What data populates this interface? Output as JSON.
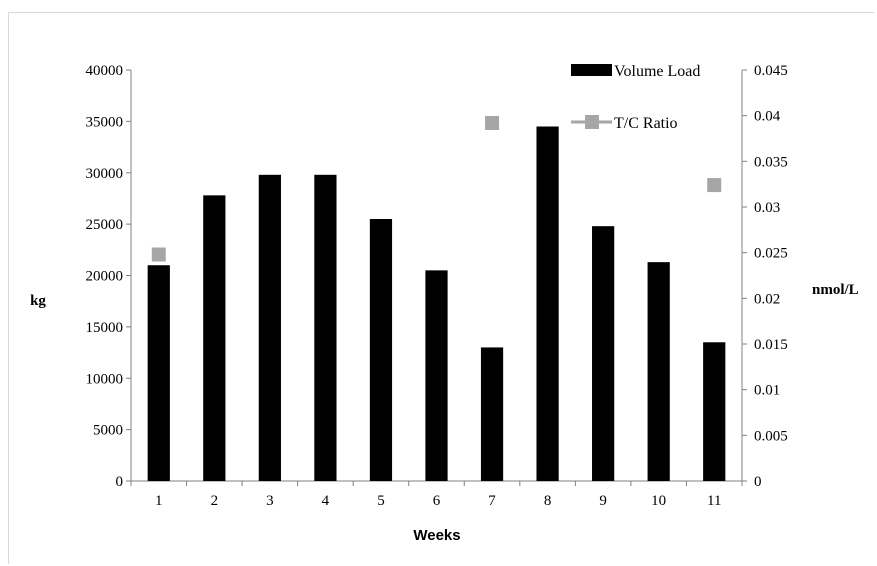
{
  "chart_data": {
    "type": "bar",
    "title": "",
    "xlabel": "Weeks",
    "ylabel": "kg",
    "y2label": "nmol/L",
    "categories": [
      "1",
      "2",
      "3",
      "4",
      "5",
      "6",
      "7",
      "8",
      "9",
      "10",
      "11"
    ],
    "ylim": [
      0,
      40000
    ],
    "yticks": [
      "0",
      "5000",
      "10000",
      "15000",
      "20000",
      "25000",
      "30000",
      "35000",
      "40000"
    ],
    "y2lim": [
      0,
      0.045
    ],
    "y2ticks": [
      "0",
      "0.005",
      "0.01",
      "0.015",
      "0.02",
      "0.025",
      "0.03",
      "0.035",
      "0.04",
      "0.045"
    ],
    "grid": false,
    "legend_position": "top-right",
    "series": [
      {
        "name": "Volume Load",
        "type": "bar",
        "axis": "left",
        "color": "#000000",
        "values": [
          21000,
          27800,
          29800,
          29800,
          25500,
          20500,
          13000,
          34500,
          24800,
          21300,
          13500
        ]
      },
      {
        "name": "T/C Ratio",
        "type": "scatter",
        "axis": "right",
        "color": "#a6a6a6",
        "values": [
          0.0248,
          null,
          null,
          null,
          null,
          null,
          0.0392,
          null,
          null,
          null,
          0.0324
        ]
      }
    ]
  }
}
